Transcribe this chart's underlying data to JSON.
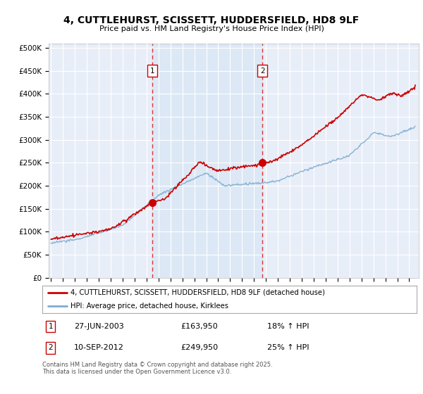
{
  "title": "4, CUTTLEHURST, SCISSETT, HUDDERSFIELD, HD8 9LF",
  "subtitle": "Price paid vs. HM Land Registry's House Price Index (HPI)",
  "yticks": [
    0,
    50000,
    100000,
    150000,
    200000,
    250000,
    300000,
    350000,
    400000,
    450000,
    500000
  ],
  "ytick_labels": [
    "£0",
    "£50K",
    "£100K",
    "£150K",
    "£200K",
    "£250K",
    "£300K",
    "£350K",
    "£400K",
    "£450K",
    "£500K"
  ],
  "ylim": [
    0,
    510000
  ],
  "xlim_start": 1994.8,
  "xlim_end": 2025.8,
  "house_color": "#cc0000",
  "hpi_color": "#7eabd0",
  "shade_color": "#dce8f5",
  "transaction1_x": 2003.48,
  "transaction1_price": 163950,
  "transaction2_x": 2012.7,
  "transaction2_price": 249950,
  "legend_house": "4, CUTTLEHURST, SCISSETT, HUDDERSFIELD, HD8 9LF (detached house)",
  "legend_hpi": "HPI: Average price, detached house, Kirklees",
  "copyright": "Contains HM Land Registry data © Crown copyright and database right 2025.\nThis data is licensed under the Open Government Licence v3.0.",
  "bg_color": "#e8eef8",
  "grid_color": "#ffffff"
}
